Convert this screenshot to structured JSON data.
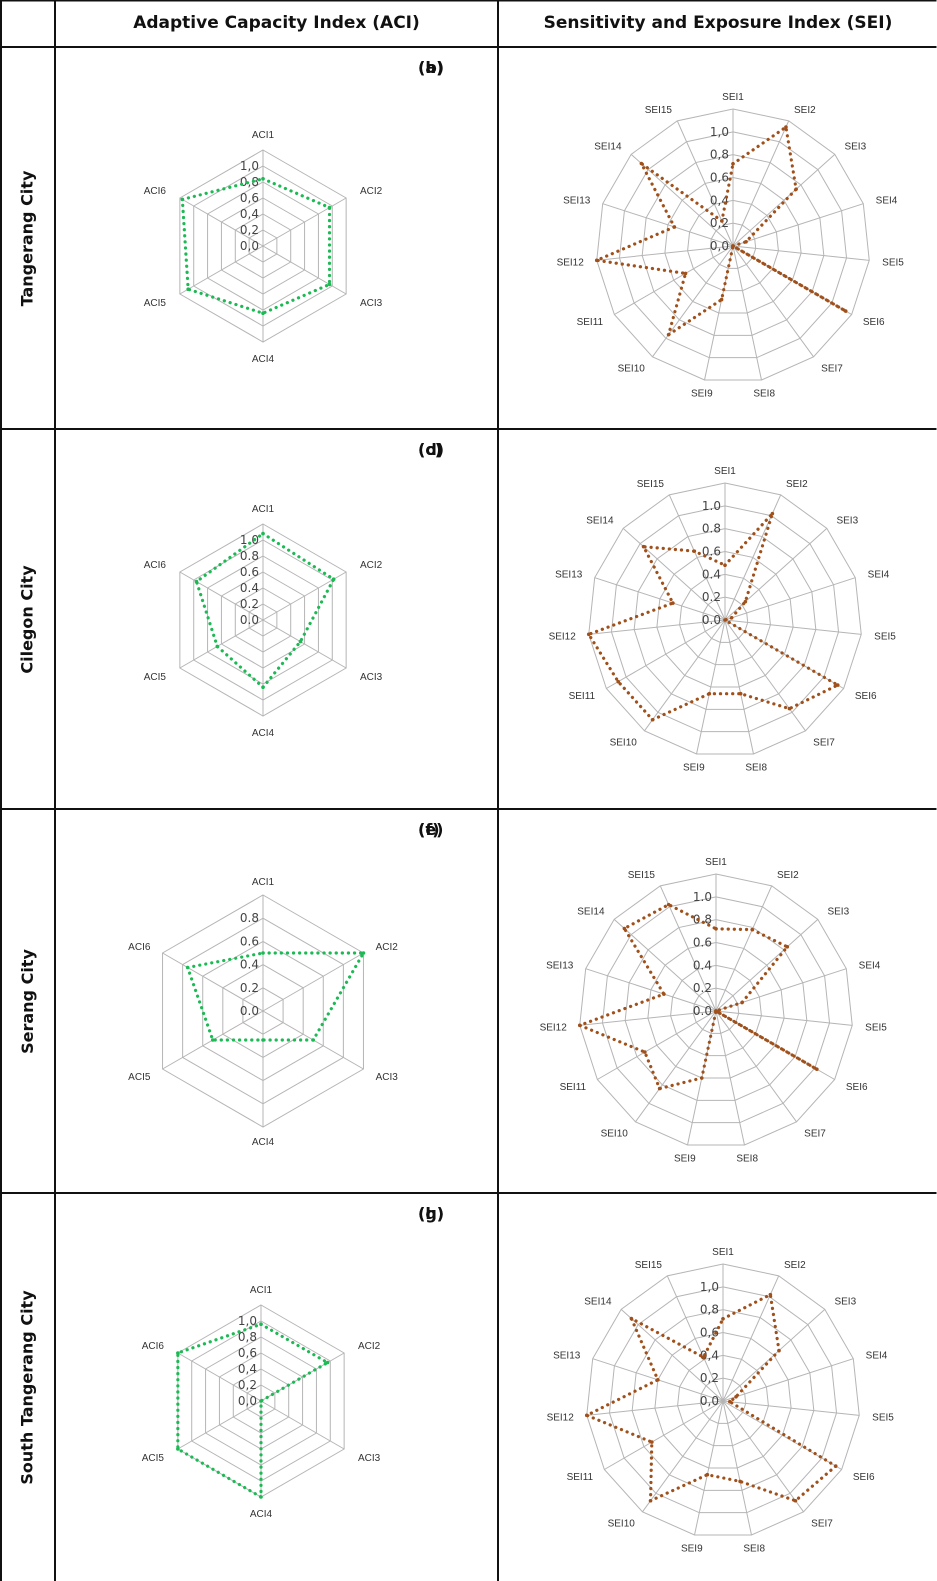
{
  "header": {
    "aci": "Adaptive Capacity Index (ACI)",
    "sei": "Sensitivity and Exposure Index (SEI)"
  },
  "rows": [
    {
      "city": "Tangerang City"
    },
    {
      "city": "Cilegon City"
    },
    {
      "city": "Serang City"
    },
    {
      "city": "South Tangerang City"
    }
  ],
  "colors": {
    "aci_series": "#1db954",
    "sei_series": "#a0501a",
    "grid": "#b5b5b5",
    "border": "#111111"
  },
  "chart_data": [
    {
      "panel": "(a)",
      "type": "radar",
      "ticks": [
        "0,0",
        "0,2",
        "0,4",
        "0,6",
        "0,8",
        "1,0"
      ],
      "max": 1.0,
      "categories": [
        "ACI1",
        "ACI2",
        "ACI3",
        "ACI4",
        "ACI5",
        "ACI6"
      ],
      "values": [
        0.7,
        0.8,
        0.8,
        0.7,
        0.9,
        0.97
      ]
    },
    {
      "panel": "(b)",
      "type": "radar",
      "ticks": [
        "0,0",
        "0,2",
        "0,4",
        "0,6",
        "0,8",
        "1,0"
      ],
      "max": 1.0,
      "categories": [
        "SEI1",
        "SEI2",
        "SEI3",
        "SEI4",
        "SEI5",
        "SEI6",
        "SEI7",
        "SEI8",
        "SEI9",
        "SEI10",
        "SEI11",
        "SEI12",
        "SEI13",
        "SEI14",
        "SEI15"
      ],
      "values": [
        0.6,
        0.95,
        0.62,
        0.1,
        0.0,
        0.95,
        0.0,
        0.0,
        0.4,
        0.8,
        0.4,
        1.0,
        0.45,
        0.9,
        0.2
      ]
    },
    {
      "panel": "(c)",
      "type": "radar",
      "ticks": [
        "0.0",
        "0.2",
        "0.4",
        "0.6",
        "0.8",
        "1.0"
      ],
      "max": 1.0,
      "categories": [
        "ACI1",
        "ACI2",
        "ACI3",
        "ACI4",
        "ACI5",
        "ACI6"
      ],
      "values": [
        0.9,
        0.85,
        0.45,
        0.7,
        0.55,
        0.8
      ]
    },
    {
      "panel": "(d)",
      "type": "radar",
      "ticks": [
        "0.0",
        "0.2",
        "0.4",
        "0.6",
        "0.8",
        "1.0"
      ],
      "max": 1.0,
      "categories": [
        "SEI1",
        "SEI2",
        "SEI3",
        "SEI4",
        "SEI5",
        "SEI6",
        "SEI7",
        "SEI8",
        "SEI9",
        "SEI10",
        "SEI11",
        "SEI12",
        "SEI13",
        "SEI14",
        "SEI15"
      ],
      "values": [
        0.4,
        0.85,
        0.2,
        0.05,
        0.0,
        0.95,
        0.8,
        0.55,
        0.55,
        0.9,
        0.9,
        1.0,
        0.4,
        0.8,
        0.55
      ]
    },
    {
      "panel": "(e)",
      "type": "radar",
      "ticks": [
        "0.0",
        "0.2",
        "0.4",
        "0.6",
        "0.8"
      ],
      "max": 0.8,
      "categories": [
        "ACI1",
        "ACI2",
        "ACI3",
        "ACI4",
        "ACI5",
        "ACI6"
      ],
      "values": [
        0.4,
        0.8,
        0.4,
        0.2,
        0.4,
        0.6
      ]
    },
    {
      "panel": "(f)",
      "type": "radar",
      "ticks": [
        "0.0",
        "0.2",
        "0.4",
        "0.6",
        "0.8",
        "1.0"
      ],
      "max": 1.0,
      "categories": [
        "SEI1",
        "SEI2",
        "SEI3",
        "SEI4",
        "SEI5",
        "SEI6",
        "SEI7",
        "SEI8",
        "SEI9",
        "SEI10",
        "SEI11",
        "SEI12",
        "SEI13",
        "SEI14",
        "SEI15"
      ],
      "values": [
        0.6,
        0.65,
        0.7,
        0.2,
        0.0,
        0.85,
        0.0,
        0.0,
        0.5,
        0.7,
        0.6,
        1.0,
        0.4,
        0.9,
        0.85
      ]
    },
    {
      "panel": "(g)",
      "type": "radar",
      "ticks": [
        "0,0",
        "0,2",
        "0,4",
        "0,6",
        "0,8",
        "1,0"
      ],
      "max": 1.0,
      "categories": [
        "ACI1",
        "ACI2",
        "ACI3",
        "ACI4",
        "ACI5",
        "ACI6"
      ],
      "values": [
        0.8,
        0.8,
        0.0,
        1.0,
        1.0,
        1.0
      ]
    },
    {
      "panel": "(h)",
      "type": "radar",
      "ticks": [
        "0,0",
        "0,2",
        "0,4",
        "0,6",
        "0,8",
        "1,0"
      ],
      "max": 1.0,
      "categories": [
        "SEI1",
        "SEI2",
        "SEI3",
        "SEI4",
        "SEI5",
        "SEI6",
        "SEI7",
        "SEI8",
        "SEI9",
        "SEI10",
        "SEI11",
        "SEI12",
        "SEI13",
        "SEI14",
        "SEI15"
      ],
      "values": [
        0.6,
        0.85,
        0.55,
        0.1,
        0.05,
        0.95,
        0.9,
        0.6,
        0.55,
        0.9,
        0.6,
        1.0,
        0.5,
        0.9,
        0.35
      ]
    }
  ]
}
